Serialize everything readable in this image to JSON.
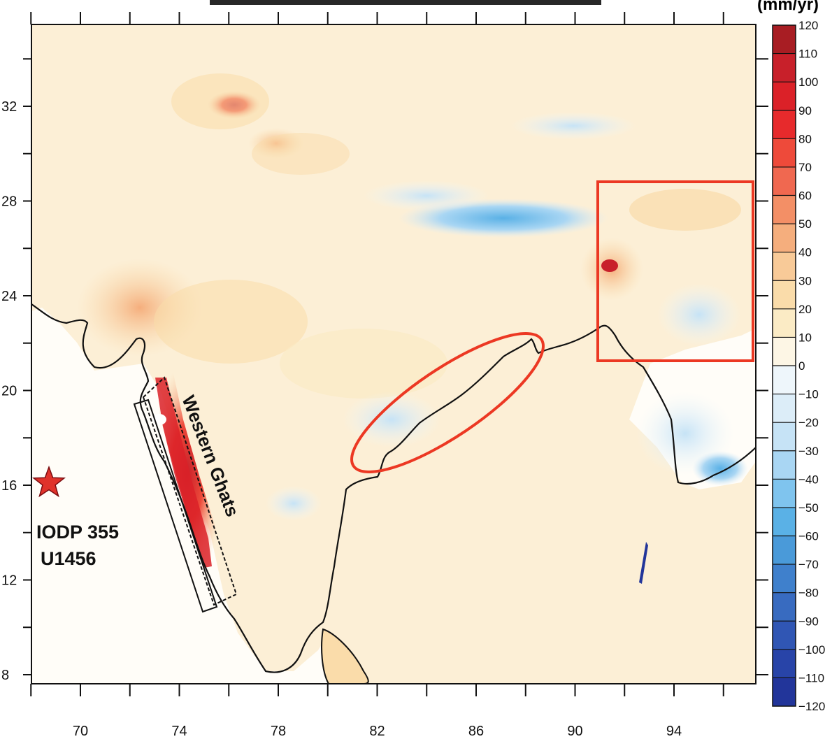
{
  "map": {
    "title_fragment": "(mm/yr)",
    "colorbar_unit": "(mm/yr)",
    "x_ticks": [
      {
        "value": 70,
        "label": "70"
      },
      {
        "value": 74,
        "label": "74"
      },
      {
        "value": 78,
        "label": "78"
      },
      {
        "value": 82,
        "label": "82"
      },
      {
        "value": 86,
        "label": "86"
      },
      {
        "value": 90,
        "label": "90"
      },
      {
        "value": 94,
        "label": "94"
      }
    ],
    "y_ticks": [
      {
        "value": 32,
        "label": "32"
      },
      {
        "value": 28,
        "label": "28"
      },
      {
        "value": 24,
        "label": "24"
      },
      {
        "value": 20,
        "label": "20"
      },
      {
        "value": 16,
        "label": "16"
      },
      {
        "value": 12,
        "label": "12"
      },
      {
        "value": 8,
        "label": "8"
      }
    ],
    "annotations": {
      "western_ghats": "Western Ghats",
      "site_line1": "IODP 355",
      "site_line2": "U1456"
    },
    "site_marker": {
      "name": "IODP 355 U1456",
      "lon": 68.6,
      "lat": 16.2,
      "color": "#e0322a"
    },
    "colorbar": {
      "min": -120,
      "max": 120,
      "step": 10,
      "labels": [
        "120",
        "110",
        "100",
        "90",
        "80",
        "70",
        "60",
        "50",
        "40",
        "30",
        "20",
        "10",
        "0",
        "−10",
        "−20",
        "−30",
        "−40",
        "−50",
        "−60",
        "−70",
        "−80",
        "−90",
        "−100",
        "−110",
        "−120"
      ],
      "colors": [
        "#a81d23",
        "#c8202a",
        "#db2128",
        "#e72a2c",
        "#ee4a3a",
        "#f06850",
        "#f38f66",
        "#f5ae7d",
        "#f8ca98",
        "#fadcaa",
        "#fbebc5",
        "#fdf6e5",
        "#eef6fb",
        "#dcedf8",
        "#c6e3f6",
        "#a9d6f3",
        "#7fc4ee",
        "#5ab1e6",
        "#4a9ad9",
        "#3f80cc",
        "#386bc0",
        "#3056b4",
        "#2844a8",
        "#22359a"
      ]
    },
    "highlight_colors": {
      "box": "#ec3823",
      "ellipse": "#ec3823"
    }
  }
}
